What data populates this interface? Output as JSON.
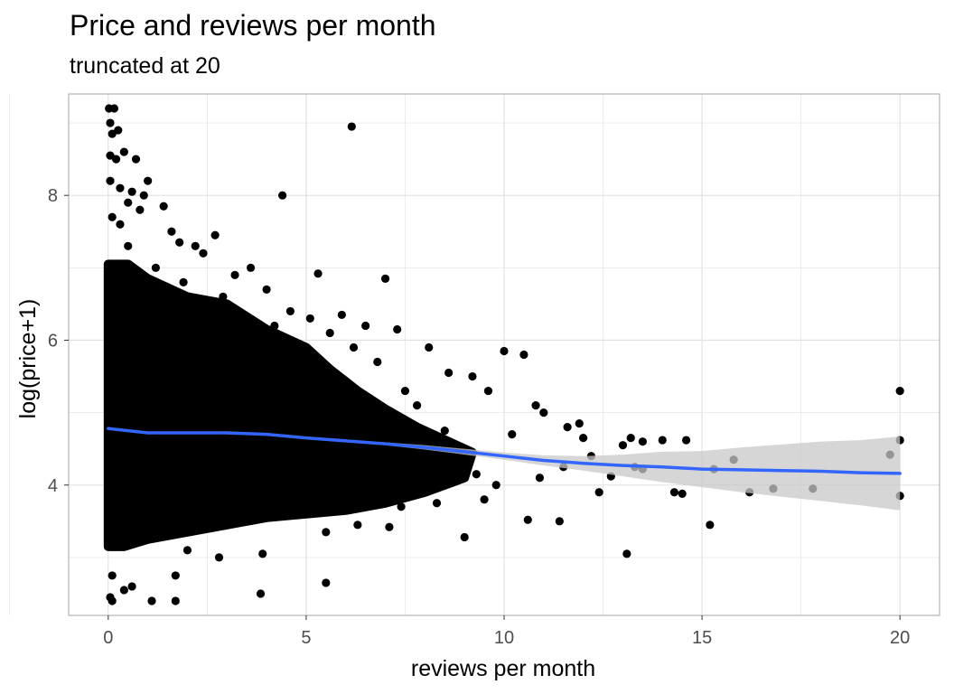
{
  "chart_data": {
    "type": "scatter",
    "title": "Price and reviews per month",
    "subtitle": "truncated at 20",
    "xlabel": "reviews per month",
    "ylabel": "log(price+1)",
    "xlim": [
      -1,
      21
    ],
    "ylim": [
      2.2,
      9.4
    ],
    "x_ticks": [
      0,
      5,
      10,
      15,
      20
    ],
    "x_tick_labels": [
      "0",
      "5",
      "10",
      "15",
      "20"
    ],
    "y_ticks": [
      4,
      6,
      8
    ],
    "y_tick_labels": [
      "4",
      "6",
      "8"
    ],
    "grid": true,
    "legend": "none",
    "colors": {
      "points": "#000000",
      "smooth_line": "#3366FF",
      "confidence_band": "#C8C8C8",
      "grid": "#E0E0E0",
      "panel_border": "#B3B3B3"
    },
    "series": [
      {
        "points": [
          [
            0.02,
            9.2
          ],
          [
            0.15,
            9.2
          ],
          [
            0.05,
            9.0
          ],
          [
            0.1,
            8.85
          ],
          [
            0.25,
            8.9
          ],
          [
            0.05,
            8.55
          ],
          [
            0.2,
            8.5
          ],
          [
            0.4,
            8.6
          ],
          [
            0.05,
            8.2
          ],
          [
            0.3,
            8.1
          ],
          [
            0.6,
            8.05
          ],
          [
            0.9,
            8.0
          ],
          [
            0.5,
            7.9
          ],
          [
            0.8,
            7.8
          ],
          [
            0.7,
            8.5
          ],
          [
            1.0,
            8.2
          ],
          [
            1.4,
            7.85
          ],
          [
            1.6,
            7.5
          ],
          [
            1.8,
            7.35
          ],
          [
            2.2,
            7.3
          ],
          [
            2.7,
            7.45
          ],
          [
            4.4,
            8.0
          ],
          [
            6.15,
            8.95
          ],
          [
            5.3,
            6.92
          ],
          [
            7.0,
            6.85
          ],
          [
            5.9,
            6.35
          ],
          [
            6.5,
            6.2
          ],
          [
            7.3,
            6.15
          ],
          [
            8.1,
            5.9
          ],
          [
            10.0,
            5.85
          ],
          [
            10.5,
            5.8
          ],
          [
            8.6,
            5.55
          ],
          [
            9.2,
            5.5
          ],
          [
            9.6,
            5.3
          ],
          [
            10.8,
            5.1
          ],
          [
            11.0,
            5.0
          ],
          [
            11.9,
            4.85
          ],
          [
            12.0,
            4.65
          ],
          [
            11.6,
            4.8
          ],
          [
            10.2,
            4.7
          ],
          [
            13.2,
            4.65
          ],
          [
            13.5,
            4.6
          ],
          [
            14.0,
            4.62
          ],
          [
            14.6,
            4.62
          ],
          [
            12.7,
            4.12
          ],
          [
            13.0,
            4.55
          ],
          [
            13.3,
            4.25
          ],
          [
            13.5,
            4.22
          ],
          [
            12.4,
            3.9
          ],
          [
            14.3,
            3.9
          ],
          [
            14.5,
            3.88
          ],
          [
            11.4,
            3.5
          ],
          [
            10.6,
            3.52
          ],
          [
            15.2,
            3.45
          ],
          [
            13.1,
            3.05
          ],
          [
            9.0,
            3.28
          ],
          [
            15.3,
            4.22
          ],
          [
            15.8,
            4.35
          ],
          [
            16.2,
            3.9
          ],
          [
            16.8,
            3.95
          ],
          [
            17.8,
            3.95
          ],
          [
            19.75,
            4.42
          ],
          [
            20.0,
            5.3
          ],
          [
            20.0,
            4.62
          ],
          [
            20.0,
            3.85
          ],
          [
            1.3,
            3.3
          ],
          [
            2.0,
            3.1
          ],
          [
            2.8,
            3.0
          ],
          [
            3.9,
            3.05
          ],
          [
            5.5,
            3.35
          ],
          [
            0.05,
            2.45
          ],
          [
            0.1,
            2.4
          ],
          [
            0.4,
            2.55
          ],
          [
            0.6,
            2.6
          ],
          [
            1.1,
            2.4
          ],
          [
            1.7,
            2.4
          ],
          [
            1.7,
            2.75
          ],
          [
            3.85,
            2.5
          ],
          [
            5.5,
            2.65
          ],
          [
            0.1,
            2.75
          ],
          [
            6.3,
            3.45
          ],
          [
            7.1,
            3.42
          ],
          [
            7.4,
            3.7
          ],
          [
            8.3,
            3.75
          ],
          [
            9.5,
            3.8
          ],
          [
            9.8,
            4.0
          ],
          [
            10.9,
            4.1
          ],
          [
            11.5,
            4.25
          ],
          [
            12.2,
            4.4
          ],
          [
            9.3,
            4.15
          ],
          [
            8.8,
            4.45
          ],
          [
            8.5,
            4.75
          ],
          [
            7.8,
            5.1
          ],
          [
            7.5,
            5.3
          ],
          [
            6.8,
            5.7
          ],
          [
            6.2,
            5.9
          ],
          [
            5.6,
            6.1
          ],
          [
            4.0,
            6.7
          ],
          [
            3.6,
            7.0
          ],
          [
            2.4,
            7.2
          ],
          [
            3.2,
            6.9
          ],
          [
            4.6,
            6.4
          ],
          [
            5.1,
            6.3
          ],
          [
            0.3,
            7.6
          ],
          [
            0.5,
            7.3
          ],
          [
            1.2,
            7.0
          ],
          [
            0.1,
            7.7
          ],
          [
            0.2,
            7.0
          ],
          [
            0.8,
            6.9
          ],
          [
            1.9,
            6.8
          ],
          [
            2.9,
            6.6
          ],
          [
            4.2,
            6.2
          ]
        ]
      }
    ],
    "dense_region": [
      [
        0.0,
        3.15
      ],
      [
        0.0,
        7.05
      ],
      [
        0.5,
        7.05
      ],
      [
        1.0,
        6.85
      ],
      [
        2.0,
        6.6
      ],
      [
        3.0,
        6.5
      ],
      [
        4.0,
        6.15
      ],
      [
        5.0,
        5.9
      ],
      [
        5.6,
        5.6
      ],
      [
        6.3,
        5.3
      ],
      [
        7.0,
        5.05
      ],
      [
        7.8,
        4.8
      ],
      [
        8.6,
        4.6
      ],
      [
        9.2,
        4.45
      ],
      [
        9.0,
        4.1
      ],
      [
        8.0,
        3.9
      ],
      [
        7.0,
        3.75
      ],
      [
        6.0,
        3.65
      ],
      [
        5.0,
        3.6
      ],
      [
        4.0,
        3.55
      ],
      [
        3.0,
        3.45
      ],
      [
        2.0,
        3.35
      ],
      [
        1.0,
        3.25
      ],
      [
        0.4,
        3.15
      ]
    ],
    "smooth": {
      "x": [
        0,
        1,
        2,
        3,
        4,
        5,
        6,
        7,
        8,
        9,
        10,
        11,
        12,
        13,
        14,
        15,
        16,
        17,
        18,
        19,
        20
      ],
      "y": [
        4.78,
        4.72,
        4.72,
        4.72,
        4.7,
        4.65,
        4.61,
        4.57,
        4.52,
        4.46,
        4.4,
        4.34,
        4.3,
        4.27,
        4.25,
        4.22,
        4.21,
        4.2,
        4.19,
        4.17,
        4.16
      ],
      "ymin": [
        4.76,
        4.71,
        4.71,
        4.71,
        4.69,
        4.64,
        4.6,
        4.55,
        4.49,
        4.42,
        4.35,
        4.27,
        4.2,
        4.12,
        4.04,
        3.97,
        3.9,
        3.84,
        3.78,
        3.72,
        3.65
      ],
      "ymax": [
        4.8,
        4.73,
        4.73,
        4.73,
        4.71,
        4.66,
        4.62,
        4.59,
        4.55,
        4.5,
        4.45,
        4.41,
        4.4,
        4.42,
        4.46,
        4.47,
        4.52,
        4.56,
        4.6,
        4.62,
        4.67
      ]
    }
  }
}
